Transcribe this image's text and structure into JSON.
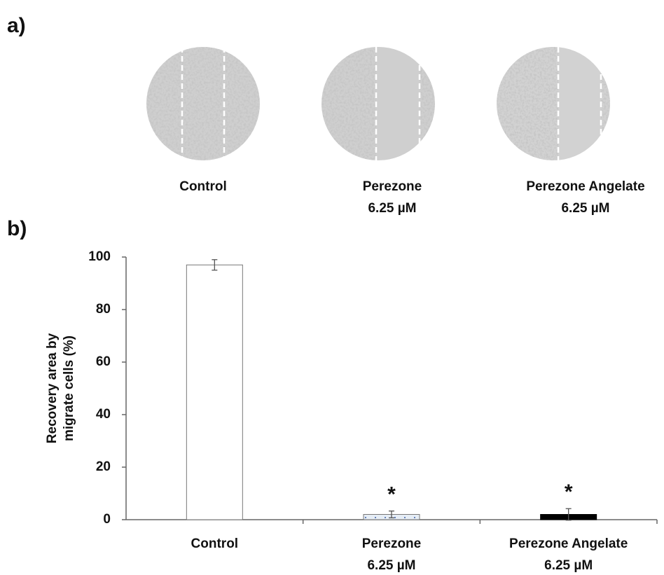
{
  "panel_a": {
    "label": "a)",
    "images": [
      {
        "label": [
          "Control"
        ]
      },
      {
        "label": [
          "Perezone",
          "6.25 µM"
        ]
      },
      {
        "label": [
          "Perezone Angelate",
          "6.25 µM"
        ]
      }
    ]
  },
  "chart_data": {
    "type": "bar",
    "panel_label": "b)",
    "y_label": [
      "Recovery area by",
      "migrate cells (%)"
    ],
    "categories": [
      [
        "Control"
      ],
      [
        "Perezone",
        "6.25 µM"
      ],
      [
        "Perezone Angelate",
        "6.25 µM"
      ]
    ],
    "values": [
      97,
      2,
      2
    ],
    "errors": [
      2,
      1.3,
      2.2
    ],
    "colors": [
      "#ffffff",
      "#e6edf5",
      "#000000"
    ],
    "significance": [
      null,
      "*",
      "*"
    ],
    "ylim": [
      0,
      100
    ],
    "yticks": [
      0,
      20,
      40,
      60,
      80,
      100
    ],
    "grid": false
  }
}
